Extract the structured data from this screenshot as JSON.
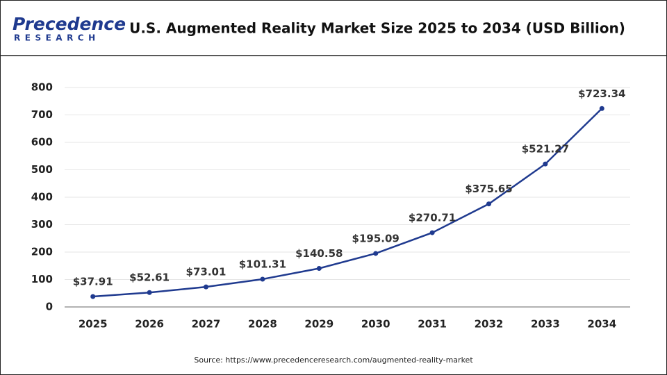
{
  "logo": {
    "name": "Precedence",
    "tagline": "RESEARCH"
  },
  "chart_data": {
    "type": "line",
    "title": "U.S. Augmented Reality Market Size 2025 to 2034 (USD Billion)",
    "source": "Source:  https://www.precedenceresearch.com/augmented-reality-market",
    "categories": [
      "2025",
      "2026",
      "2027",
      "2028",
      "2029",
      "2030",
      "2031",
      "2032",
      "2033",
      "2034"
    ],
    "values": [
      37.91,
      52.61,
      73.01,
      101.31,
      140.58,
      195.09,
      270.71,
      375.65,
      521.27,
      723.34
    ],
    "value_labels": [
      "$37.91",
      "$52.61",
      "$73.01",
      "$101.31",
      "$140.58",
      "$195.09",
      "$270.71",
      "$375.65",
      "$521.27",
      "$723.34"
    ],
    "color": "#1f3a8f",
    "ylim": [
      0,
      800
    ],
    "yticks": [
      0,
      100,
      200,
      300,
      400,
      500,
      600,
      700,
      800
    ],
    "grid": true
  }
}
